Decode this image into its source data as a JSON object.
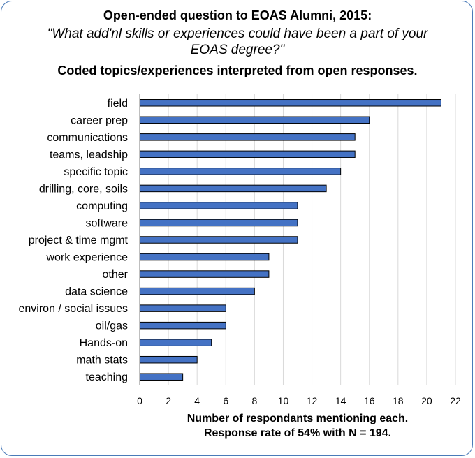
{
  "chart_data": {
    "type": "bar",
    "orientation": "horizontal",
    "title": "Open-ended question to EOAS Alumni, 2015:",
    "subtitle_lines": [
      "\"What add'nl skills or experiences could have been a part of your",
      "EOAS degree?\""
    ],
    "subtitle2": "Coded topics/experiences interpreted from open responses.",
    "xlabel_lines": [
      "Number of respondants mentioning each.",
      "Response rate of 54% with N = 194."
    ],
    "ylabel": "",
    "categories": [
      "field",
      "career prep",
      "communications",
      "teams, leadship",
      "specific topic",
      "drilling, core, soils",
      "computing",
      "software",
      "project & time mgmt",
      "work experience",
      "other",
      "data science",
      "environ / social issues",
      "oil/gas",
      "Hands-on",
      "math stats",
      "teaching"
    ],
    "values": [
      21,
      16,
      15,
      15,
      14,
      13,
      11,
      11,
      11,
      9,
      9,
      8,
      6,
      6,
      5,
      4,
      3
    ],
    "xlim": [
      0,
      22
    ],
    "xticks": [
      0,
      2,
      4,
      6,
      8,
      10,
      12,
      14,
      16,
      18,
      20,
      22
    ],
    "grid": "vertical",
    "legend": "none",
    "bar_color": "#4472c4",
    "bar_edge_color": "#000000",
    "grid_color": "#d9d9d9"
  }
}
